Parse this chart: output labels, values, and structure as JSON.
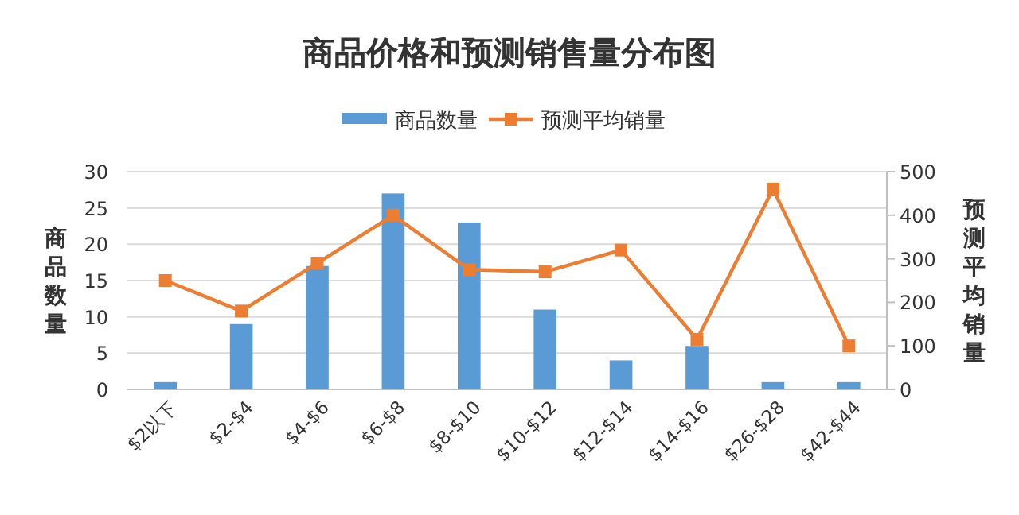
{
  "chart_data": {
    "type": "bar",
    "title": "商品价格和预测销售量分布图",
    "ylabel": "商品数量",
    "y2label": "预测平均销量",
    "categories": [
      "$2以下",
      "$2-$4",
      "$4-$6",
      "$6-$8",
      "$8-$10",
      "$10-$12",
      "$12-$14",
      "$14-$16",
      "$26-$28",
      "$42-$44"
    ],
    "series": [
      {
        "name": "商品数量",
        "color": "#5b9bd5",
        "values": [
          1,
          9,
          17,
          27,
          23,
          11,
          4,
          6,
          1,
          1
        ]
      },
      {
        "name": "预测平均销量",
        "type": "line",
        "axis": "y2",
        "color": "#ed7d31",
        "marker": "square",
        "values": [
          250,
          180,
          290,
          400,
          275,
          270,
          320,
          115,
          460,
          100
        ]
      }
    ],
    "ylim": [
      0,
      30
    ],
    "yticks": [
      0,
      5,
      10,
      15,
      20,
      25,
      30
    ],
    "y2lim": [
      0,
      500
    ],
    "y2ticks": [
      0,
      100,
      200,
      300,
      400,
      500
    ],
    "grid": "y",
    "legend": "top"
  }
}
